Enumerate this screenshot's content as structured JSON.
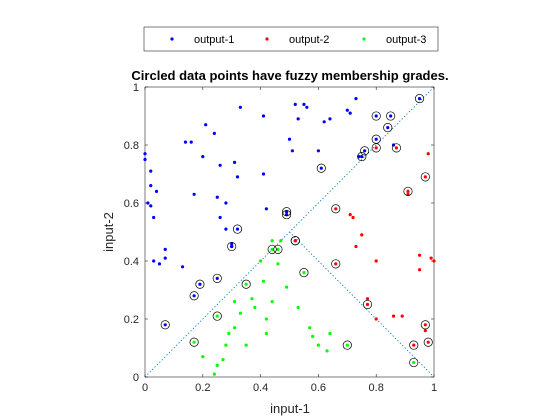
{
  "chart_data": {
    "type": "scatter",
    "title": "Circled data points have fuzzy membership grades.",
    "xlabel": "input-1",
    "ylabel": "input-2",
    "xlim": [
      0,
      1
    ],
    "ylim": [
      0,
      1
    ],
    "xticks": [
      "0",
      "0.2",
      "0.4",
      "0.6",
      "0.8",
      "1"
    ],
    "yticks": [
      "0",
      "0.2",
      "0.4",
      "0.6",
      "0.8",
      "1"
    ],
    "legend_position": "top",
    "series": [
      {
        "name": "output-1",
        "color": "#0000ff",
        "points": [
          [
            0.0,
            0.77
          ],
          [
            0.0,
            0.75
          ],
          [
            0.02,
            0.71
          ],
          [
            0.01,
            0.6
          ],
          [
            0.02,
            0.59
          ],
          [
            0.03,
            0.55
          ],
          [
            0.02,
            0.66
          ],
          [
            0.04,
            0.64
          ],
          [
            0.07,
            0.44
          ],
          [
            0.07,
            0.41
          ],
          [
            0.03,
            0.4
          ],
          [
            0.05,
            0.39
          ],
          [
            0.14,
            0.81
          ],
          [
            0.16,
            0.81
          ],
          [
            0.13,
            0.38
          ],
          [
            0.17,
            0.63
          ],
          [
            0.2,
            0.76
          ],
          [
            0.21,
            0.87
          ],
          [
            0.24,
            0.84
          ],
          [
            0.26,
            0.73
          ],
          [
            0.25,
            0.62
          ],
          [
            0.26,
            0.55
          ],
          [
            0.28,
            0.6
          ],
          [
            0.28,
            0.51
          ],
          [
            0.3,
            0.46
          ],
          [
            0.3,
            0.45
          ],
          [
            0.31,
            0.74
          ],
          [
            0.32,
            0.69
          ],
          [
            0.33,
            0.93
          ],
          [
            0.41,
            0.7
          ],
          [
            0.41,
            0.9
          ],
          [
            0.42,
            0.58
          ],
          [
            0.5,
            0.82
          ],
          [
            0.51,
            0.78
          ],
          [
            0.52,
            0.94
          ],
          [
            0.53,
            0.89
          ],
          [
            0.55,
            0.94
          ],
          [
            0.56,
            0.93
          ],
          [
            0.6,
            0.78
          ],
          [
            0.62,
            0.88
          ],
          [
            0.64,
            0.89
          ],
          [
            0.7,
            0.92
          ],
          [
            0.71,
            0.91
          ],
          [
            0.73,
            0.96
          ],
          [
            0.74,
            0.76
          ],
          [
            0.86,
            0.8
          ]
        ],
        "circled": [
          [
            0.07,
            0.18
          ],
          [
            0.17,
            0.28
          ],
          [
            0.19,
            0.32
          ],
          [
            0.25,
            0.34
          ],
          [
            0.3,
            0.45
          ],
          [
            0.32,
            0.51
          ],
          [
            0.49,
            0.56
          ],
          [
            0.49,
            0.57
          ],
          [
            0.52,
            0.47
          ],
          [
            0.61,
            0.72
          ],
          [
            0.75,
            0.76
          ],
          [
            0.76,
            0.78
          ],
          [
            0.8,
            0.9
          ],
          [
            0.8,
            0.82
          ],
          [
            0.84,
            0.86
          ],
          [
            0.85,
            0.9
          ],
          [
            0.95,
            0.96
          ]
        ]
      },
      {
        "name": "output-2",
        "color": "#ff0000",
        "points": [
          [
            0.71,
            0.56
          ],
          [
            0.72,
            0.55
          ],
          [
            0.73,
            0.45
          ],
          [
            0.75,
            0.49
          ],
          [
            0.77,
            0.27
          ],
          [
            0.8,
            0.4
          ],
          [
            0.8,
            0.2
          ],
          [
            0.86,
            0.21
          ],
          [
            0.89,
            0.21
          ],
          [
            0.91,
            0.63
          ],
          [
            0.95,
            0.37
          ],
          [
            0.95,
            0.42
          ],
          [
            0.97,
            0.16
          ],
          [
            0.99,
            0.41
          ],
          [
            1.0,
            0.4
          ],
          [
            0.98,
            0.77
          ]
        ],
        "circled": [
          [
            0.52,
            0.47
          ],
          [
            0.66,
            0.58
          ],
          [
            0.66,
            0.39
          ],
          [
            0.77,
            0.25
          ],
          [
            0.8,
            0.79
          ],
          [
            0.87,
            0.79
          ],
          [
            0.91,
            0.64
          ],
          [
            0.93,
            0.11
          ],
          [
            0.97,
            0.69
          ],
          [
            0.97,
            0.18
          ],
          [
            0.98,
            0.12
          ]
        ]
      },
      {
        "name": "output-3",
        "color": "#00ff00",
        "points": [
          [
            0.2,
            0.07
          ],
          [
            0.24,
            0.01
          ],
          [
            0.25,
            0.04
          ],
          [
            0.27,
            0.06
          ],
          [
            0.28,
            0.11
          ],
          [
            0.29,
            0.15
          ],
          [
            0.31,
            0.17
          ],
          [
            0.31,
            0.26
          ],
          [
            0.33,
            0.22
          ],
          [
            0.35,
            0.11
          ],
          [
            0.37,
            0.27
          ],
          [
            0.38,
            0.24
          ],
          [
            0.4,
            0.4
          ],
          [
            0.41,
            0.33
          ],
          [
            0.42,
            0.15
          ],
          [
            0.42,
            0.2
          ],
          [
            0.44,
            0.26
          ],
          [
            0.44,
            0.47
          ],
          [
            0.46,
            0.39
          ],
          [
            0.47,
            0.47
          ],
          [
            0.49,
            0.31
          ],
          [
            0.53,
            0.24
          ],
          [
            0.57,
            0.17
          ],
          [
            0.58,
            0.14
          ],
          [
            0.6,
            0.11
          ],
          [
            0.63,
            0.09
          ],
          [
            0.64,
            0.15
          ]
        ],
        "circled": [
          [
            0.17,
            0.12
          ],
          [
            0.25,
            0.21
          ],
          [
            0.35,
            0.32
          ],
          [
            0.44,
            0.44
          ],
          [
            0.46,
            0.44
          ],
          [
            0.55,
            0.36
          ],
          [
            0.7,
            0.11
          ],
          [
            0.93,
            0.05
          ]
        ]
      }
    ],
    "boundaries": [
      {
        "from": [
          0,
          0
        ],
        "to": [
          1,
          1
        ]
      },
      {
        "from": [
          0.5,
          0.5
        ],
        "to": [
          1,
          0
        ]
      }
    ]
  }
}
